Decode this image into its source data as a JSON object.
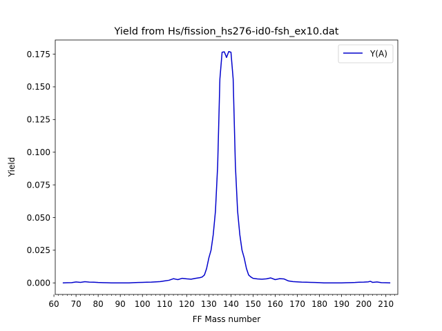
{
  "chart_data": {
    "type": "line",
    "title": "Yield from  Hs/fission_hs276-id0-fsh_ex10.dat",
    "xlabel": "FF Mass number",
    "ylabel": "Yield",
    "xlim": [
      60.6,
      215.4
    ],
    "ylim": [
      -0.00885,
      0.18585
    ],
    "xticks": [
      60,
      70,
      80,
      90,
      100,
      110,
      120,
      130,
      140,
      150,
      160,
      170,
      180,
      190,
      200,
      210
    ],
    "xtick_labels": [
      "60",
      "70",
      "80",
      "90",
      "100",
      "110",
      "120",
      "130",
      "140",
      "150",
      "160",
      "170",
      "180",
      "190",
      "200",
      "210"
    ],
    "yticks": [
      0.0,
      0.025,
      0.05,
      0.075,
      0.1,
      0.125,
      0.15,
      0.175
    ],
    "ytick_labels": [
      "0.000",
      "0.025",
      "0.050",
      "0.075",
      "0.100",
      "0.125",
      "0.150",
      "0.175"
    ],
    "minor_xtick_step": 2,
    "grid": false,
    "legend_position": "top-right",
    "series": [
      {
        "name": "Y(A)",
        "color": "#0000cc",
        "x": [
          64,
          66,
          68,
          70,
          72,
          74,
          76,
          78,
          80,
          82,
          84,
          86,
          88,
          90,
          92,
          94,
          96,
          98,
          100,
          102,
          104,
          106,
          108,
          110,
          112,
          114,
          116,
          118,
          120,
          122,
          124,
          126,
          127,
          128,
          129,
          130,
          131,
          132,
          133,
          134,
          135,
          136,
          137,
          138,
          139,
          140,
          141,
          142,
          143,
          144,
          145,
          146,
          147,
          148,
          149,
          150,
          152,
          154,
          156,
          158,
          160,
          162,
          164,
          166,
          168,
          170,
          172,
          174,
          176,
          178,
          180,
          182,
          184,
          186,
          188,
          190,
          192,
          194,
          196,
          198,
          200,
          202,
          203,
          204,
          206,
          208,
          210,
          212
        ],
        "y": [
          0.0,
          0.0001,
          0.0002,
          0.0007,
          0.0004,
          0.0009,
          0.0006,
          0.0005,
          0.0003,
          0.0002,
          0.0001,
          0.0,
          0.0,
          0.0,
          0.0,
          0.0,
          0.0002,
          0.0003,
          0.0004,
          0.0005,
          0.0006,
          0.0008,
          0.001,
          0.0015,
          0.002,
          0.0032,
          0.0025,
          0.0035,
          0.0031,
          0.0028,
          0.0035,
          0.004,
          0.0045,
          0.006,
          0.011,
          0.019,
          0.025,
          0.037,
          0.055,
          0.09,
          0.156,
          0.1765,
          0.1768,
          0.1725,
          0.177,
          0.1765,
          0.156,
          0.09,
          0.055,
          0.037,
          0.025,
          0.019,
          0.011,
          0.006,
          0.0045,
          0.0035,
          0.003,
          0.0028,
          0.0031,
          0.0038,
          0.0025,
          0.0032,
          0.003,
          0.0015,
          0.001,
          0.0008,
          0.0006,
          0.0005,
          0.0004,
          0.0003,
          0.0002,
          0.0,
          0.0,
          0.0,
          0.0,
          0.0,
          0.0001,
          0.0002,
          0.0003,
          0.0005,
          0.0006,
          0.0008,
          0.0012,
          0.0004,
          0.0007,
          0.0002,
          0.0001,
          0.0
        ]
      }
    ]
  }
}
